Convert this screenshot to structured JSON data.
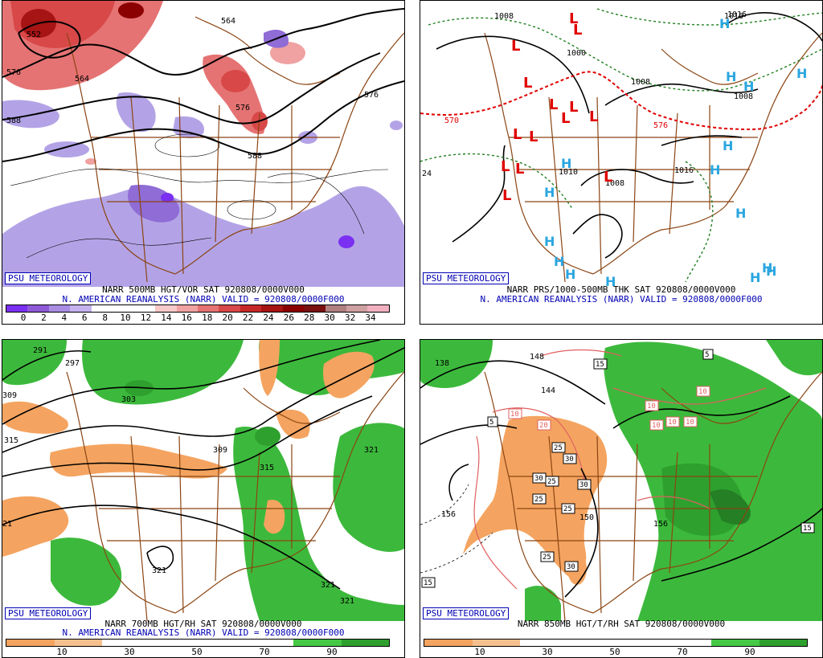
{
  "panels": {
    "vort500": {
      "credit": "PSU METEOROLOGY",
      "line1": "NARR 500MB HGT/VOR SAT 920808/0000V000",
      "line2": "N. AMERICAN REANALYSIS (NARR) VALID = 920808/0000F000",
      "colorbar": {
        "ticks": [
          "0",
          "2",
          "4",
          "6",
          "8",
          "10",
          "12",
          "14",
          "16",
          "18",
          "20",
          "22",
          "24",
          "26",
          "28",
          "30",
          "32",
          "34"
        ],
        "colors": [
          "#7b2ff0",
          "#8f5ad8",
          "#a98de3",
          "#c4b3ee",
          "#ffffff",
          "#ffffff",
          "#ffffff",
          "#f7c9c9",
          "#f0a1a1",
          "#e57373",
          "#d84848",
          "#c62828",
          "#a61414",
          "#8b0000",
          "#7a0f0f",
          "#b08080",
          "#cfa0a0",
          "#f0b0c0"
        ]
      },
      "contour_labels": [
        "552",
        "564",
        "576",
        "588",
        "576",
        "564",
        "576",
        "588"
      ]
    },
    "prs": {
      "credit": "PSU METEOROLOGY",
      "line1": "NARR PRS/1000-500MB THK SAT 920808/0000V000",
      "line2": "N. AMERICAN REANALYSIS (NARR) VALID = 920808/0000F000",
      "contour_labels": [
        "1008",
        "1000",
        "1016",
        "1008",
        "1008",
        "570",
        "576",
        "1016",
        "1008",
        "1010",
        "1016",
        "24"
      ],
      "lows": [
        "L",
        "L",
        "L",
        "L",
        "L",
        "L",
        "L",
        "L",
        "L",
        "L",
        "L",
        "L",
        "L",
        "L"
      ],
      "highs": [
        "H",
        "H",
        "H",
        "H",
        "H",
        "H",
        "H",
        "H",
        "H",
        "H",
        "H",
        "H",
        "H",
        "H",
        "H",
        "H"
      ]
    },
    "rh700": {
      "credit": "PSU METEOROLOGY",
      "line1": "NARR 700MB HGT/RH SAT 920808/0000V000",
      "line2": "N. AMERICAN REANALYSIS (NARR) VALID = 920808/0000F000",
      "colorbar": {
        "ticks": [
          "10",
          "30",
          "50",
          "70",
          "90"
        ],
        "colors": [
          "#f4a460",
          "#f6c08e",
          "#ffffff",
          "#ffffff",
          "#ffffff",
          "#ffffff",
          "#45c845",
          "#2ea02e"
        ]
      },
      "contour_labels": [
        "291",
        "297",
        "303",
        "309",
        "315",
        "309",
        "315",
        "321",
        "321",
        "321",
        "321",
        "21"
      ]
    },
    "t850": {
      "credit": "PSU METEOROLOGY",
      "line1": "NARR 850MB HGT/T/RH SAT 920808/0000V000",
      "line2": "N. AMERICAN REANALYSIS (NARR) VALID = 920808/0000F000",
      "colorbar": {
        "ticks": [
          "10",
          "30",
          "50",
          "70",
          "90"
        ],
        "colors": [
          "#f4a460",
          "#f6c08e",
          "#ffffff",
          "#ffffff",
          "#ffffff",
          "#ffffff",
          "#45c845",
          "#2ea02e"
        ]
      },
      "contour_labels": [
        "138",
        "148",
        "144",
        "150",
        "156",
        "156",
        "15",
        "5",
        "10",
        "10",
        "10",
        "10",
        "10",
        "10",
        "20",
        "25",
        "30",
        "30",
        "25",
        "25",
        "30",
        "25",
        "30",
        "15",
        "15",
        "25",
        "5"
      ]
    }
  },
  "colors": {
    "credit_blue": "#0000b4",
    "state_brown": "#8b4513",
    "vort_red": "#d84848",
    "vort_purple": "#8f6cd6",
    "rh_green": "#3cb93c",
    "rh_orange": "#f4a460",
    "low_red": "#e00000",
    "high_cyan": "#2aa6e0",
    "thick_red": "#e00000",
    "isobar_green": "#208020"
  }
}
